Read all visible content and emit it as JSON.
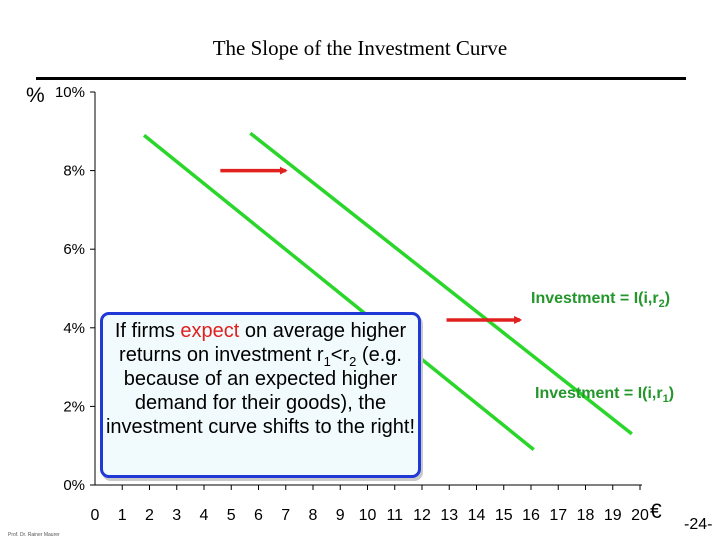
{
  "chart_data": {
    "type": "line",
    "title": "The Slope of the Investment Curve",
    "y_unit_label": "%",
    "x_unit_label": "€",
    "x_ticks": [
      "0",
      "1",
      "2",
      "3",
      "4",
      "5",
      "6",
      "7",
      "8",
      "9",
      "10",
      "11",
      "12",
      "13",
      "14",
      "15",
      "16",
      "17",
      "18",
      "19",
      "20"
    ],
    "y_ticks": [
      "0%",
      "2%",
      "4%",
      "6%",
      "8%",
      "10%"
    ],
    "xlim": [
      0,
      20
    ],
    "ylim": [
      0,
      10
    ],
    "grid": false,
    "series": [
      {
        "name": "Investment = I(i,r1)",
        "color": "#2bd62b",
        "x": [
          1.8,
          16.1
        ],
        "y": [
          8.9,
          0.9
        ]
      },
      {
        "name": "Investment = I(i,r2)",
        "color": "#2bd62b",
        "x": [
          5.7,
          19.7
        ],
        "y": [
          8.95,
          1.3
        ]
      }
    ],
    "annotations": {
      "shift_arrows": [
        {
          "x_from": 4.6,
          "x_to": 7.0,
          "y": 8.0
        },
        {
          "x_from": 12.9,
          "x_to": 15.6,
          "y": 4.2
        }
      ],
      "arrow_color": "#e0211f"
    }
  },
  "labels": {
    "curve_r2": {
      "prefix": "Investment = I(i,r",
      "sub": "2",
      "suffix": ")"
    },
    "curve_r1": {
      "prefix": "Investment = I(i,r",
      "sub": "1",
      "suffix": ")"
    }
  },
  "note": {
    "part1": "If firms ",
    "highlight": "expect",
    "part2": " on average higher returns on investment r",
    "sub1": "1",
    "part3": "<r",
    "sub2": "2",
    "part4": " (e.g. because of an expected higher demand for their goods),  the investment curve shifts to the right!"
  },
  "footer": {
    "author": "Prof. Dr. Rainer Maurer",
    "page": "-24-"
  },
  "colors": {
    "curve": "#2bd62b",
    "arrow": "#e0211f",
    "note_border": "#1f38d6",
    "label_green": "#24962b"
  }
}
